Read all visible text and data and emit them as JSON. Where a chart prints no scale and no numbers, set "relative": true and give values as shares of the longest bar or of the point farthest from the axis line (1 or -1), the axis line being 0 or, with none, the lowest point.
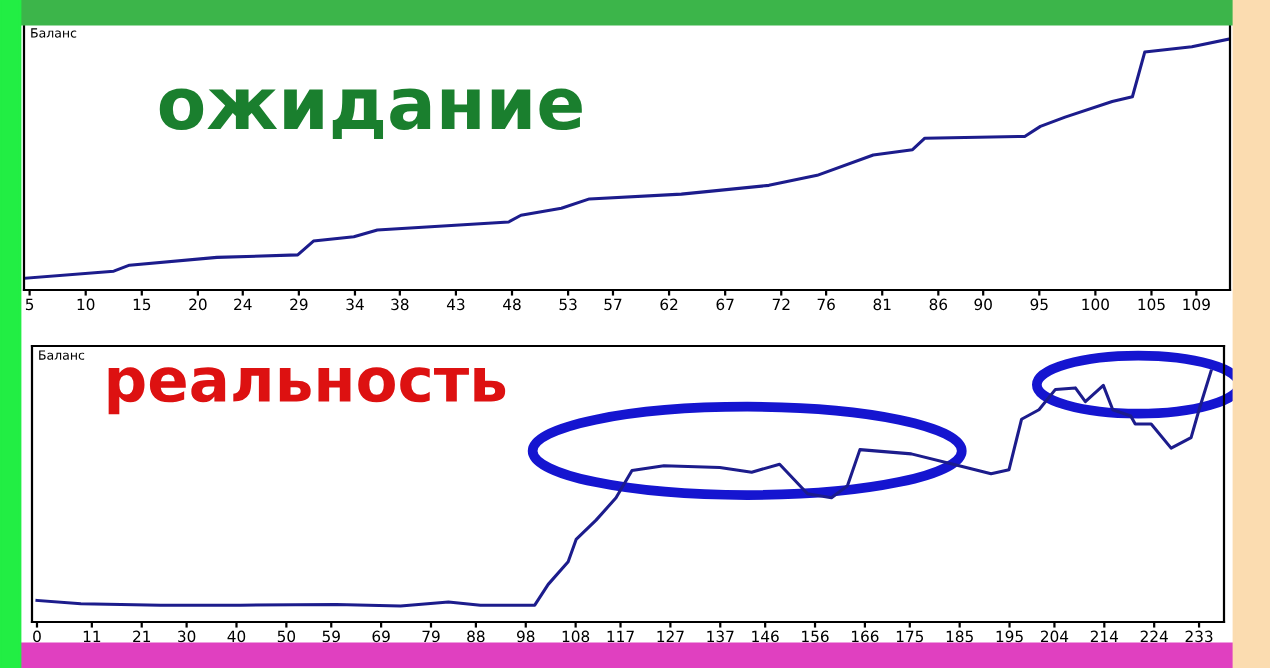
{
  "chart_data": [
    {
      "type": "line",
      "title": "ожидание",
      "ylabel": "Баланс",
      "relative": true,
      "xlim": [
        4.5,
        112
      ],
      "xticks": [
        5,
        10,
        15,
        20,
        24,
        29,
        34,
        38,
        43,
        48,
        53,
        57,
        62,
        67,
        72,
        76,
        81,
        86,
        90,
        95,
        100,
        105,
        109
      ],
      "grid": false,
      "legend": false,
      "series": [
        {
          "color": "#1c1c8c",
          "x": [
            4.64,
            12.5,
            13.9,
            21.7,
            28.9,
            30.3,
            33.9,
            36.0,
            47.7,
            48.8,
            52.4,
            54.9,
            63.1,
            70.9,
            75.2,
            80.2,
            83.7,
            84.8,
            93.7,
            95.1,
            97.3,
            101.5,
            103.3,
            104.4,
            108.6,
            111.9
          ],
          "values": [
            0.047,
            0.075,
            0.099,
            0.13,
            0.14,
            0.195,
            0.212,
            0.239,
            0.271,
            0.298,
            0.326,
            0.363,
            0.382,
            0.417,
            0.457,
            0.538,
            0.559,
            0.605,
            0.612,
            0.652,
            0.689,
            0.751,
            0.77,
            0.948,
            0.969,
            1.0
          ]
        }
      ]
    },
    {
      "type": "line",
      "title": "реальность",
      "ylabel": "Баланс",
      "relative": true,
      "xlim": [
        -1,
        238
      ],
      "xticks": [
        0,
        11,
        21,
        30,
        40,
        50,
        59,
        69,
        79,
        88,
        98,
        108,
        117,
        127,
        137,
        146,
        156,
        166,
        175,
        185,
        195,
        204,
        214,
        224,
        233
      ],
      "grid": false,
      "legend": false,
      "series": [
        {
          "color": "#1c1c8c",
          "x": [
            0,
            8.8,
            24.8,
            40.8,
            60,
            72.9,
            82.5,
            88.9,
            99.8,
            102.5,
            106.5,
            108.1,
            112.1,
            116.1,
            119.3,
            125.7,
            136.9,
            143.3,
            148.9,
            154.5,
            159.3,
            162.5,
            165,
            175.3,
            184.9,
            191.3,
            194.9,
            197.4,
            200.9,
            204.2,
            208.2,
            210.2,
            213.8,
            215.7,
            219.3,
            220.2,
            223.4,
            227.4,
            231.4,
            233,
            235.4
          ],
          "values": [
            0.086,
            0.073,
            0.067,
            0.067,
            0.07,
            0.064,
            0.08,
            0.067,
            0.067,
            0.15,
            0.24,
            0.329,
            0.406,
            0.495,
            0.604,
            0.623,
            0.616,
            0.597,
            0.629,
            0.511,
            0.495,
            0.543,
            0.687,
            0.67,
            0.623,
            0.591,
            0.607,
            0.808,
            0.846,
            0.927,
            0.933,
            0.878,
            0.943,
            0.846,
            0.821,
            0.789,
            0.789,
            0.693,
            0.735,
            0.846,
            1.0
          ]
        }
      ]
    }
  ]
}
